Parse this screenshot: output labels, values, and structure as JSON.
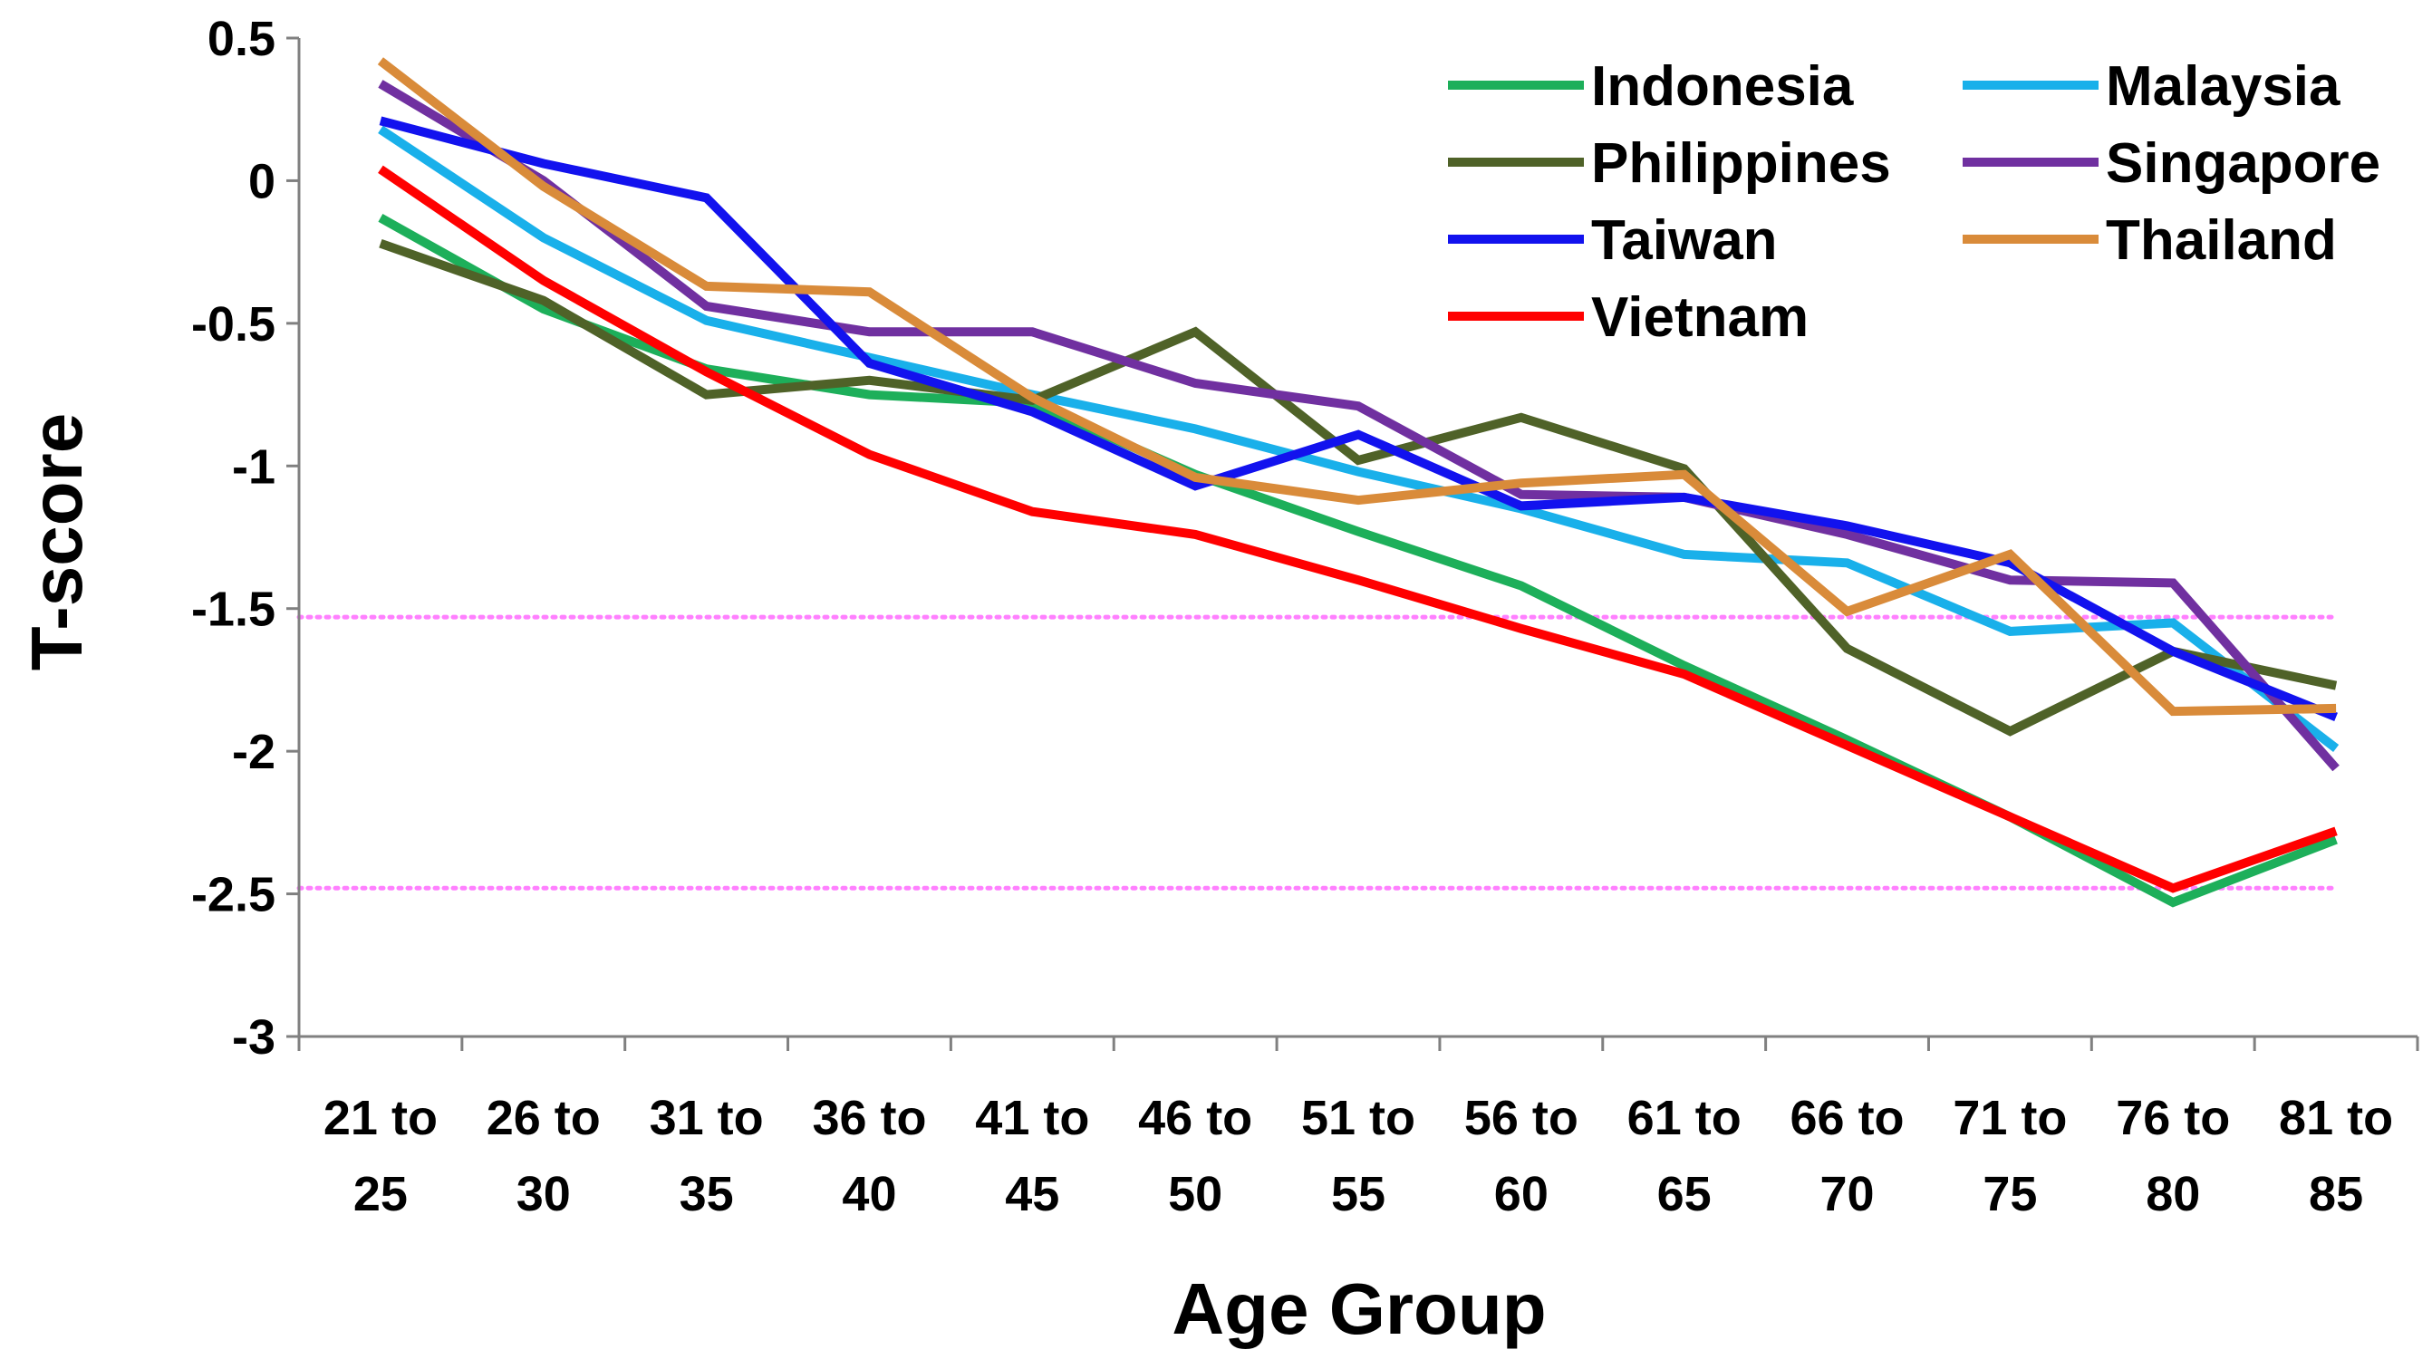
{
  "chart_data": {
    "type": "line",
    "title": "",
    "xlabel": "Age Group",
    "ylabel": "T-score",
    "ylim": [
      -3,
      0.5
    ],
    "y_ticks": [
      "0.5",
      "0",
      "-0.5",
      "-1",
      "-1.5",
      "-2",
      "-2.5",
      "-3"
    ],
    "y_tick_values": [
      0.5,
      0,
      -0.5,
      -1,
      -1.5,
      -2,
      -2.5,
      -3
    ],
    "categories": [
      [
        "21 to",
        "25"
      ],
      [
        "26 to",
        "30"
      ],
      [
        "31 to",
        "35"
      ],
      [
        "36 to",
        "40"
      ],
      [
        "41 to",
        "45"
      ],
      [
        "46 to",
        "50"
      ],
      [
        "51 to",
        "55"
      ],
      [
        "56 to",
        "60"
      ],
      [
        "61 to",
        "65"
      ],
      [
        "66 to",
        "70"
      ],
      [
        "71 to",
        "75"
      ],
      [
        "76 to",
        "80"
      ],
      [
        "81 to",
        "85"
      ]
    ],
    "grid": false,
    "legend_position": "top-right",
    "reference_lines": [
      {
        "value": -1.53,
        "color": "#ff80ff",
        "style": "dotted"
      },
      {
        "value": -2.48,
        "color": "#ff80ff",
        "style": "dotted"
      }
    ],
    "series": [
      {
        "name": "Indonesia",
        "color": "#1daf5a",
        "values": [
          -0.13,
          -0.45,
          -0.66,
          -0.75,
          -0.78,
          -1.03,
          -1.23,
          -1.42,
          -1.7,
          -1.96,
          -2.23,
          -2.53,
          -2.31
        ]
      },
      {
        "name": "Malaysia",
        "color": "#19b0ea",
        "values": [
          0.18,
          -0.2,
          -0.49,
          -0.62,
          -0.75,
          -0.87,
          -1.02,
          -1.15,
          -1.31,
          -1.34,
          -1.58,
          -1.55,
          -1.99
        ]
      },
      {
        "name": "Philippines",
        "color": "#4f6228",
        "values": [
          -0.22,
          -0.42,
          -0.75,
          -0.7,
          -0.77,
          -0.53,
          -0.98,
          -0.83,
          -1.01,
          -1.64,
          -1.93,
          -1.65,
          -1.77
        ]
      },
      {
        "name": "Singapore",
        "color": "#7030a0",
        "values": [
          0.34,
          0.0,
          -0.44,
          -0.53,
          -0.53,
          -0.71,
          -0.79,
          -1.1,
          -1.11,
          -1.24,
          -1.4,
          -1.41,
          -2.06
        ]
      },
      {
        "name": "Taiwan",
        "color": "#1212ee",
        "values": [
          0.21,
          0.06,
          -0.06,
          -0.64,
          -0.81,
          -1.07,
          -0.89,
          -1.14,
          -1.11,
          -1.21,
          -1.34,
          -1.65,
          -1.88
        ]
      },
      {
        "name": "Thailand",
        "color": "#d98b3a",
        "values": [
          0.42,
          -0.02,
          -0.37,
          -0.39,
          -0.76,
          -1.04,
          -1.12,
          -1.06,
          -1.03,
          -1.51,
          -1.31,
          -1.86,
          -1.85
        ]
      },
      {
        "name": "Vietnam",
        "color": "#ff0000",
        "values": [
          0.04,
          -0.35,
          -0.67,
          -0.96,
          -1.16,
          -1.24,
          -1.4,
          -1.57,
          -1.73,
          -1.98,
          -2.23,
          -2.48,
          -2.28
        ]
      }
    ]
  }
}
